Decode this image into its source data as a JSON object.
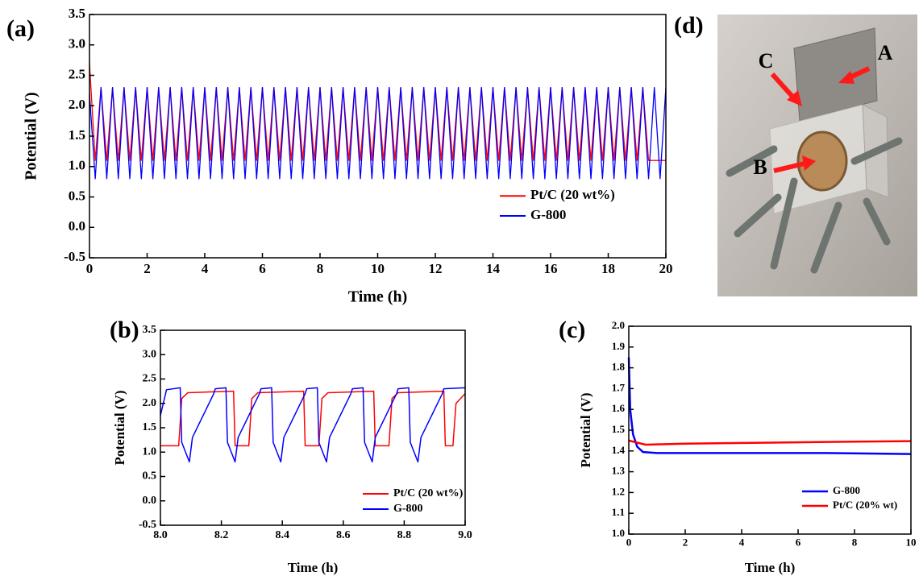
{
  "chart_data": [
    {
      "type": "line",
      "panel_label": "(a)",
      "xlabel": "Time (h)",
      "ylabel": "Potential (V)",
      "x": [
        0,
        0.2,
        0.4,
        0.6,
        0.8,
        1,
        1.2,
        1.4,
        1.6,
        1.8,
        2,
        2.2,
        2.4,
        2.6,
        2.8,
        3,
        3.2,
        3.4,
        3.6,
        3.8,
        4,
        4.2,
        4.4,
        4.6,
        4.8,
        5,
        5.2,
        5.4,
        5.6,
        5.8,
        6,
        6.2,
        6.4,
        6.6,
        6.8,
        7,
        7.2,
        7.4,
        7.6,
        7.8,
        8,
        8.2,
        8.4,
        8.6,
        8.8,
        9,
        9.2,
        9.4,
        9.6,
        9.8,
        10,
        10.2,
        10.4,
        10.6,
        10.8,
        11,
        11.2,
        11.4,
        11.6,
        11.8,
        12,
        12.2,
        12.4,
        12.6,
        12.8,
        13,
        13.2,
        13.4,
        13.6,
        13.8,
        14,
        14.2,
        14.4,
        14.6,
        14.8,
        15,
        15.2,
        15.4,
        15.6,
        15.8,
        16,
        16.2,
        16.4,
        16.6,
        16.8,
        17,
        17.2,
        17.4,
        17.6,
        17.8,
        18,
        18.2,
        18.4,
        18.6,
        18.8,
        19,
        19.2,
        19.4,
        19.6,
        19.8,
        20
      ],
      "series": [
        {
          "name": "Pt/C (20 wt%)",
          "color": "#ff0000",
          "values": [
            2.7,
            1.1,
            2.3,
            1.1,
            2.3,
            1.1,
            2.3,
            1.1,
            2.3,
            1.1,
            2.3,
            1.1,
            2.3,
            1.1,
            2.3,
            1.1,
            2.3,
            1.1,
            2.3,
            1.1,
            2.3,
            1.1,
            2.3,
            1.1,
            2.3,
            1.1,
            2.3,
            1.1,
            2.3,
            1.1,
            2.3,
            1.1,
            2.3,
            1.1,
            2.3,
            1.1,
            2.3,
            1.1,
            2.3,
            1.1,
            2.3,
            1.1,
            2.3,
            1.1,
            2.3,
            1.1,
            2.3,
            1.1,
            2.3,
            1.1,
            2.3,
            1.1,
            2.3,
            1.1,
            2.3,
            1.1,
            2.3,
            1.1,
            2.3,
            1.1,
            2.3,
            1.1,
            2.3,
            1.1,
            2.3,
            1.1,
            2.3,
            1.1,
            2.3,
            1.1,
            2.3,
            1.1,
            2.3,
            1.1,
            2.3,
            1.1,
            2.3,
            1.1,
            2.3,
            1.1,
            2.3,
            1.1,
            2.3,
            1.1,
            2.3,
            1.1,
            2.3,
            1.1,
            2.3,
            1.1,
            2.3,
            1.1,
            2.3,
            1.1,
            2.3,
            1.1,
            2.3,
            1.1,
            1.1,
            1.1,
            1.1
          ]
        },
        {
          "name": "G-800",
          "color": "#0000ff",
          "values": [
            2.2,
            0.8,
            2.3,
            0.8,
            2.3,
            0.8,
            2.3,
            0.8,
            2.3,
            0.8,
            2.3,
            0.8,
            2.3,
            0.8,
            2.3,
            0.8,
            2.3,
            0.8,
            2.3,
            0.8,
            2.3,
            0.8,
            2.3,
            0.8,
            2.3,
            0.8,
            2.3,
            0.8,
            2.3,
            0.8,
            2.3,
            0.8,
            2.3,
            0.8,
            2.3,
            0.8,
            2.3,
            0.8,
            2.3,
            0.8,
            2.3,
            0.8,
            2.3,
            0.8,
            2.3,
            0.8,
            2.3,
            0.8,
            2.3,
            0.8,
            2.3,
            0.8,
            2.3,
            0.8,
            2.3,
            0.8,
            2.3,
            0.8,
            2.3,
            0.8,
            2.3,
            0.8,
            2.3,
            0.8,
            2.3,
            0.8,
            2.3,
            0.8,
            2.3,
            0.8,
            2.3,
            0.8,
            2.3,
            0.8,
            2.3,
            0.8,
            2.3,
            0.8,
            2.3,
            0.8,
            2.3,
            0.8,
            2.3,
            0.8,
            2.3,
            0.8,
            2.3,
            0.8,
            2.3,
            0.8,
            2.3,
            0.8,
            2.3,
            0.8,
            2.3,
            0.8,
            2.3,
            0.8,
            2.3,
            0.8,
            2.3
          ]
        }
      ],
      "xlim": [
        0,
        20
      ],
      "xticks": [
        0,
        2,
        4,
        6,
        8,
        10,
        12,
        14,
        16,
        18,
        20
      ],
      "ylim": [
        -0.5,
        3.5
      ],
      "yticks": [
        -0.5,
        {
          "value": 0,
          "label": "0.0"
        },
        0.5,
        {
          "value": 1,
          "label": "1.0"
        },
        1.5,
        {
          "value": 2,
          "label": "2.0"
        },
        2.5,
        {
          "value": 3,
          "label": "3.0"
        },
        3.5
      ],
      "legend": "lower right"
    },
    {
      "type": "line",
      "panel_label": "(b)",
      "xlabel": "Time (h)",
      "ylabel": "Potential (V)",
      "series": [
        {
          "name": "Pt/C (20 wt%)",
          "color": "#ff0000",
          "x": [
            8.0,
            8.06,
            8.07,
            8.09,
            8.24,
            8.245,
            8.29,
            8.3,
            8.32,
            8.47,
            8.475,
            8.52,
            8.53,
            8.55,
            8.7,
            8.705,
            8.75,
            8.76,
            8.78,
            8.93,
            8.935,
            8.96,
            8.97,
            9.0
          ],
          "values": [
            1.13,
            1.13,
            2.1,
            2.22,
            2.25,
            1.13,
            1.13,
            2.1,
            2.22,
            2.25,
            1.13,
            1.13,
            2.1,
            2.22,
            2.25,
            1.13,
            1.13,
            2.1,
            2.22,
            2.25,
            1.13,
            1.13,
            2.0,
            2.2
          ]
        },
        {
          "name": "G-800",
          "color": "#0000ff",
          "x": [
            8.0,
            8.02,
            8.065,
            8.07,
            8.095,
            8.105,
            8.175,
            8.18,
            8.215,
            8.22,
            8.245,
            8.255,
            8.325,
            8.33,
            8.365,
            8.37,
            8.395,
            8.405,
            8.475,
            8.48,
            8.515,
            8.52,
            8.545,
            8.555,
            8.625,
            8.63,
            8.665,
            8.67,
            8.695,
            8.705,
            8.775,
            8.78,
            8.815,
            8.82,
            8.845,
            8.855,
            8.925,
            8.93,
            9.0
          ],
          "values": [
            1.75,
            2.28,
            2.32,
            1.2,
            0.8,
            1.3,
            2.2,
            2.3,
            2.32,
            1.2,
            0.8,
            1.3,
            2.2,
            2.3,
            2.32,
            1.2,
            0.8,
            1.3,
            2.2,
            2.3,
            2.32,
            1.2,
            0.8,
            1.3,
            2.2,
            2.3,
            2.32,
            1.2,
            0.8,
            1.3,
            2.2,
            2.3,
            2.32,
            1.2,
            0.8,
            1.3,
            2.2,
            2.3,
            2.32
          ]
        }
      ],
      "xlim": [
        8.0,
        9.0
      ],
      "xticks": [
        {
          "value": 8,
          "label": "8.0"
        },
        8.2,
        8.4,
        8.6,
        8.8,
        {
          "value": 9,
          "label": "9.0"
        }
      ],
      "ylim": [
        -0.5,
        3.5
      ],
      "yticks": [
        -0.5,
        {
          "value": 0,
          "label": "0.0"
        },
        0.5,
        {
          "value": 1,
          "label": "1.0"
        },
        1.5,
        {
          "value": 2,
          "label": "2.0"
        },
        2.5,
        {
          "value": 3,
          "label": "3.0"
        },
        3.5
      ],
      "legend": "lower right"
    },
    {
      "type": "line",
      "panel_label": "(c)",
      "xlabel": "Time (h)",
      "ylabel": "Potential (V)",
      "series": [
        {
          "name": "G-800",
          "color": "#0000ff",
          "x": [
            0,
            0.05,
            0.15,
            0.3,
            0.5,
            1,
            4,
            7,
            10
          ],
          "values": [
            1.85,
            1.6,
            1.48,
            1.42,
            1.395,
            1.39,
            1.39,
            1.39,
            1.385
          ]
        },
        {
          "name": "Pt/C (20% wt)",
          "color": "#ff0000",
          "x": [
            0,
            0.3,
            0.6,
            2,
            5,
            8,
            10
          ],
          "values": [
            1.45,
            1.44,
            1.43,
            1.435,
            1.44,
            1.445,
            1.447
          ]
        }
      ],
      "xlim": [
        0,
        10
      ],
      "xticks": [
        0,
        2,
        4,
        6,
        8,
        10
      ],
      "ylim": [
        1.0,
        2.0
      ],
      "yticks": [
        {
          "value": 1,
          "label": "1.0"
        },
        1.1,
        1.2,
        1.3,
        1.4,
        1.5,
        1.6,
        1.7,
        1.8,
        1.9,
        {
          "value": 2,
          "label": "2.0"
        }
      ],
      "legend": "lower right"
    }
  ],
  "photo": {
    "panel_label": "(d)",
    "labels": [
      "A",
      "B",
      "C"
    ]
  }
}
